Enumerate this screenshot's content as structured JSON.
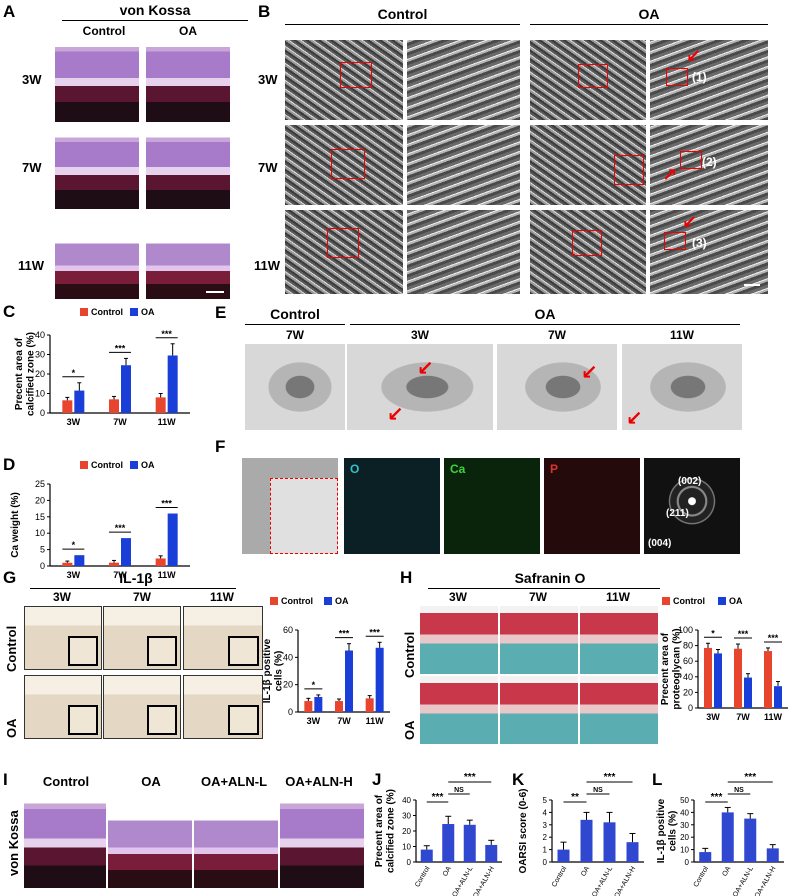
{
  "panels": {
    "A": {
      "letter": "A",
      "title": "von Kossa",
      "cols": [
        "Control",
        "OA"
      ],
      "rows": [
        "3W",
        "7W",
        "11W"
      ]
    },
    "B": {
      "letter": "B",
      "cols": [
        "Control",
        "OA"
      ],
      "rows": [
        "3W",
        "7W",
        "11W"
      ],
      "marks": [
        "(1)",
        "(2)",
        "(3)"
      ]
    },
    "C": {
      "letter": "C"
    },
    "D": {
      "letter": "D"
    },
    "E": {
      "letter": "E",
      "ctrl_title": "Control",
      "oa_title": "OA",
      "weeks": [
        "7W",
        "3W",
        "7W",
        "11W"
      ]
    },
    "F": {
      "letter": "F",
      "channels": [
        "O",
        "Ca",
        "P"
      ],
      "rings": [
        "(002)",
        "(211)",
        "(004)"
      ]
    },
    "G": {
      "letter": "G",
      "title": "IL-1β",
      "cols": [
        "3W",
        "7W",
        "11W"
      ],
      "rows": [
        "Control",
        "OA"
      ]
    },
    "H": {
      "letter": "H",
      "title": "Safranin O",
      "cols": [
        "3W",
        "7W",
        "11W"
      ],
      "rows": [
        "Control",
        "OA"
      ]
    },
    "I": {
      "letter": "I",
      "cols": [
        "Control",
        "OA",
        "OA+ALN-L",
        "OA+ALN-H"
      ],
      "row": "von Kossa"
    },
    "J": {
      "letter": "J"
    },
    "K": {
      "letter": "K"
    },
    "L": {
      "letter": "L"
    }
  },
  "colors": {
    "control": "#e8452f",
    "oa": "#1a3fd8",
    "ihc": "#3047d0"
  },
  "chart_data": [
    {
      "id": "C",
      "type": "bar",
      "ylabel": "Precent area of calcified zone (%)",
      "categories": [
        "3W",
        "7W",
        "11W"
      ],
      "legend": [
        "Control",
        "OA"
      ],
      "ylim": [
        0,
        40
      ],
      "yticks": [
        0,
        10,
        20,
        30,
        40
      ],
      "series": [
        {
          "name": "Control",
          "values": [
            6.5,
            7,
            8
          ],
          "err": [
            1.5,
            1.5,
            2
          ]
        },
        {
          "name": "OA",
          "values": [
            11.5,
            24.5,
            29.5
          ],
          "err": [
            4,
            3.5,
            6
          ]
        }
      ],
      "sig": [
        "*",
        "***",
        "***"
      ]
    },
    {
      "id": "D",
      "type": "bar",
      "ylabel": "Ca weight (%)",
      "categories": [
        "3W",
        "7W",
        "11W"
      ],
      "legend": [
        "Control",
        "OA"
      ],
      "ylim": [
        0,
        25
      ],
      "yticks": [
        0,
        5,
        10,
        15,
        20,
        25
      ],
      "series": [
        {
          "name": "Control",
          "values": [
            1,
            1,
            2.3
          ],
          "err": [
            0.5,
            0.7,
            0.8
          ]
        },
        {
          "name": "OA",
          "values": [
            3.3,
            8.5,
            16
          ]
        },
        {}
      ],
      "sig": [
        "*",
        "***",
        "***"
      ]
    },
    {
      "id": "G",
      "type": "bar",
      "ylabel": "IL-1β positive cells (%)",
      "categories": [
        "3W",
        "7W",
        "11W"
      ],
      "legend": [
        "Control",
        "OA"
      ],
      "ylim": [
        0,
        60
      ],
      "yticks": [
        0,
        20,
        40,
        60
      ],
      "series": [
        {
          "name": "Control",
          "values": [
            8,
            8,
            10
          ],
          "err": [
            2,
            1.5,
            2
          ]
        },
        {
          "name": "OA",
          "values": [
            11,
            45,
            47
          ],
          "err": [
            1.5,
            5,
            4
          ]
        }
      ],
      "sig": [
        "*",
        "***",
        "***"
      ]
    },
    {
      "id": "H",
      "type": "bar",
      "ylabel": "Precent area of proteoglycan (%)",
      "categories": [
        "3W",
        "7W",
        "11W"
      ],
      "legend": [
        "Control",
        "OA"
      ],
      "ylim": [
        0,
        100
      ],
      "yticks": [
        0,
        20,
        40,
        60,
        80,
        100
      ],
      "series": [
        {
          "name": "Control",
          "values": [
            77,
            76,
            73
          ],
          "err": [
            6,
            6,
            4
          ]
        },
        {
          "name": "OA",
          "values": [
            70,
            39,
            28
          ],
          "err": [
            5,
            5,
            6
          ]
        }
      ],
      "sig": [
        "*",
        "***",
        "***"
      ]
    },
    {
      "id": "J",
      "type": "bar",
      "ylabel": "Precent area of calcified zone (%)",
      "categories": [
        "Control",
        "OA",
        "OA+ALN-L",
        "OA+ALN-H"
      ],
      "ylim": [
        0,
        40
      ],
      "yticks": [
        0,
        10,
        20,
        30,
        40
      ],
      "values": [
        8,
        24.5,
        24,
        11
      ],
      "err": [
        2.5,
        5,
        3,
        3
      ],
      "sig": [
        {
          "from": 0,
          "to": 1,
          "label": "***"
        },
        {
          "from": 1,
          "to": 2,
          "label": "NS"
        },
        {
          "from": 1,
          "to": 3,
          "label": "***"
        }
      ]
    },
    {
      "id": "K",
      "type": "bar",
      "ylabel": "OARSI score (0-6)",
      "categories": [
        "Control",
        "OA",
        "OA+ALN-L",
        "OA+ALN-H"
      ],
      "ylim": [
        0,
        5
      ],
      "yticks": [
        0,
        1,
        2,
        3,
        4,
        5
      ],
      "values": [
        1,
        3.4,
        3.2,
        1.6
      ],
      "err": [
        0.6,
        0.6,
        0.8,
        0.7
      ],
      "sig": [
        {
          "from": 0,
          "to": 1,
          "label": "**"
        },
        {
          "from": 1,
          "to": 2,
          "label": "NS"
        },
        {
          "from": 1,
          "to": 3,
          "label": "***"
        }
      ]
    },
    {
      "id": "L",
      "type": "bar",
      "ylabel": "IL-1β positive cells (%)",
      "categories": [
        "Control",
        "OA",
        "OA+ALN-L",
        "OA+ALN-H"
      ],
      "ylim": [
        0,
        50
      ],
      "yticks": [
        0,
        10,
        20,
        30,
        40,
        50
      ],
      "values": [
        8,
        40,
        35,
        11
      ],
      "err": [
        3,
        4,
        4,
        3
      ],
      "sig": [
        {
          "from": 0,
          "to": 1,
          "label": "***"
        },
        {
          "from": 1,
          "to": 2,
          "label": "NS"
        },
        {
          "from": 1,
          "to": 3,
          "label": "***"
        }
      ]
    }
  ]
}
